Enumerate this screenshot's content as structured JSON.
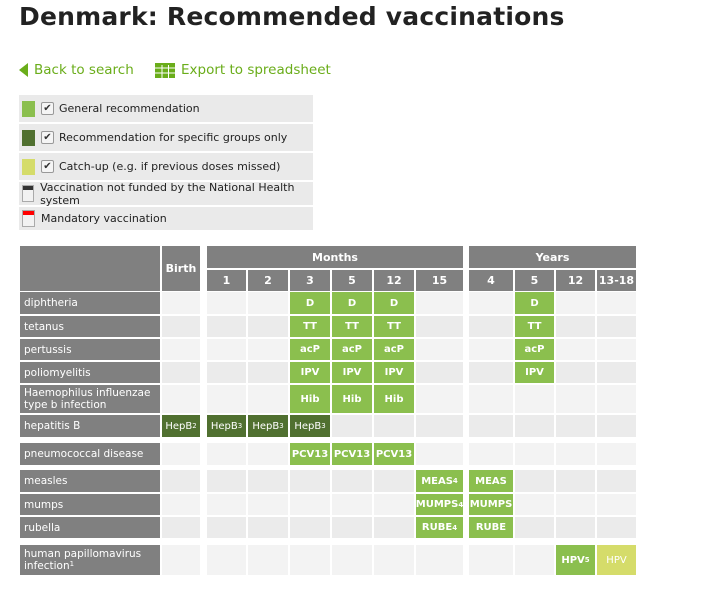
{
  "title": "Denmark: Recommended vaccinations",
  "links": {
    "back": "Back to search",
    "export": "Export to spreadsheet"
  },
  "legend": [
    {
      "label": "General recommendation",
      "color": "#8bbf4e",
      "checked": true
    },
    {
      "label": "Recommendation for specific groups only",
      "color": "#507030",
      "checked": true
    },
    {
      "label": "Catch-up (e.g. if previous doses missed)",
      "color": "#d5dc6a",
      "checked": true
    },
    {
      "label": "Vaccination not funded by the National Health system",
      "color": "#333333"
    },
    {
      "label": "Mandatory vaccination",
      "color": "#ff0000"
    }
  ],
  "table": {
    "groups": {
      "birth": "Birth",
      "months": "Months",
      "years": "Years"
    },
    "columns": [
      "1",
      "2",
      "3",
      "5",
      "12",
      "15",
      "4",
      "5",
      "12",
      "13-18"
    ],
    "rows": [
      {
        "label": "diphtheria",
        "cells": {
          "3": [
            "D",
            "gen"
          ],
          "4": [
            "D",
            "gen"
          ],
          "5": [
            "D",
            "gen"
          ],
          "8": [
            "D",
            "gen"
          ]
        }
      },
      {
        "label": "tetanus",
        "cells": {
          "3": [
            "TT",
            "gen"
          ],
          "4": [
            "TT",
            "gen"
          ],
          "5": [
            "TT",
            "gen"
          ],
          "8": [
            "TT",
            "gen"
          ]
        }
      },
      {
        "label": "pertussis",
        "cells": {
          "3": [
            "acP",
            "gen"
          ],
          "4": [
            "acP",
            "gen"
          ],
          "5": [
            "acP",
            "gen"
          ],
          "8": [
            "acP",
            "gen"
          ]
        }
      },
      {
        "label": "poliomyelitis",
        "cells": {
          "3": [
            "IPV",
            "gen"
          ],
          "4": [
            "IPV",
            "gen"
          ],
          "5": [
            "IPV",
            "gen"
          ],
          "8": [
            "IPV",
            "gen"
          ]
        }
      },
      {
        "label": "Haemophilus influenzae type b infection",
        "cells": {
          "3": [
            "Hib",
            "gen"
          ],
          "4": [
            "Hib",
            "gen"
          ],
          "5": [
            "Hib",
            "gen"
          ]
        }
      },
      {
        "label": "hepatitis B",
        "cells": {
          "0": [
            "HepB",
            "spec",
            "2"
          ],
          "1": [
            "HepB",
            "spec",
            "3"
          ],
          "2": [
            "HepB",
            "spec",
            "3"
          ],
          "3": [
            "HepB",
            "spec",
            "3"
          ]
        }
      },
      {
        "label": "pneumococcal disease",
        "cells": {
          "3": [
            "PCV13",
            "gen"
          ],
          "4": [
            "PCV13",
            "gen"
          ],
          "5": [
            "PCV13",
            "gen"
          ]
        }
      },
      {
        "label": "measles",
        "cells": {
          "6": [
            "MEAS",
            "gen",
            "4"
          ],
          "7": [
            "MEAS",
            "gen"
          ]
        }
      },
      {
        "label": "mumps",
        "cells": {
          "6": [
            "MUMPS",
            "gen",
            "4"
          ],
          "7": [
            "MUMPS",
            "gen"
          ]
        }
      },
      {
        "label": "rubella",
        "cells": {
          "6": [
            "RUBE",
            "gen",
            "4"
          ],
          "7": [
            "RUBE",
            "gen"
          ]
        }
      },
      {
        "label": "human papillomavirus infection",
        "label_sup": "1",
        "cells": {
          "9": [
            "HPV",
            "gen",
            "5"
          ],
          "10": [
            "HPV",
            "catch"
          ]
        }
      }
    ]
  }
}
